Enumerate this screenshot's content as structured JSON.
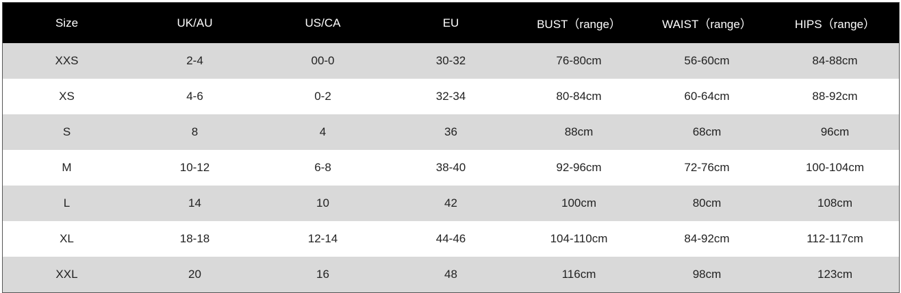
{
  "table": {
    "header": [
      "Size",
      "UK/AU",
      "US/CA",
      "EU",
      "BUST（range）",
      "WAIST（range）",
      "HIPS（range）"
    ],
    "rows": [
      [
        "XXS",
        "2-4",
        "00-0",
        "30-32",
        "76-80cm",
        "56-60cm",
        "84-88cm"
      ],
      [
        "XS",
        "4-6",
        "0-2",
        "32-34",
        "80-84cm",
        "60-64cm",
        "88-92cm"
      ],
      [
        "S",
        "8",
        "4",
        "36",
        "88cm",
        "68cm",
        "96cm"
      ],
      [
        "M",
        "10-12",
        "6-8",
        "38-40",
        "92-96cm",
        "72-76cm",
        "100-104cm"
      ],
      [
        "L",
        "14",
        "10",
        "42",
        "100cm",
        "80cm",
        "108cm"
      ],
      [
        "XL",
        "18-18",
        "12-14",
        "44-46",
        "104-110cm",
        "84-92cm",
        "112-117cm"
      ],
      [
        "XXL",
        "20",
        "16",
        "48",
        "116cm",
        "98cm",
        "123cm"
      ]
    ]
  }
}
